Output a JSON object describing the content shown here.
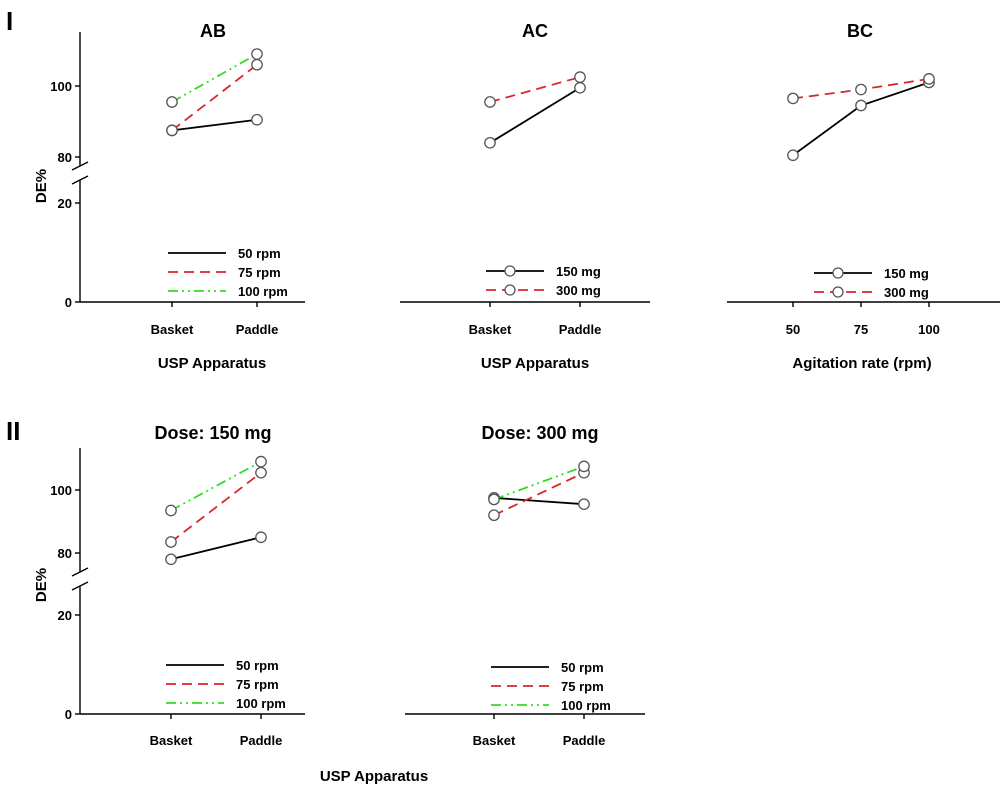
{
  "figure": {
    "panel_labels": [
      "I",
      "II"
    ],
    "ylabel": "DE%",
    "colors": {
      "50 rpm": "#000000",
      "75 rpm": "#d9262b",
      "100 rpm": "#33dd22",
      "150 mg": "#000000",
      "300 mg": "#d9262b"
    }
  },
  "chart_data": [
    {
      "type": "line",
      "title": "AB",
      "xlabel": "USP Apparatus",
      "ylabel": "DE%",
      "categories": [
        "Basket",
        "Paddle"
      ],
      "broken_y_axis": true,
      "y_ticks": [
        0,
        20,
        80,
        100
      ],
      "series": [
        {
          "name": "50 rpm",
          "values": [
            87.5,
            90.5
          ],
          "markers": true
        },
        {
          "name": "75 rpm",
          "values": [
            87.5,
            106
          ],
          "markers": true
        },
        {
          "name": "100 rpm",
          "values": [
            95.5,
            109
          ],
          "markers": true
        }
      ],
      "legend": "bottom-center"
    },
    {
      "type": "line",
      "title": "AC",
      "xlabel": "USP Apparatus",
      "categories": [
        "Basket",
        "Paddle"
      ],
      "series": [
        {
          "name": "150 mg",
          "values": [
            84,
            99.5
          ],
          "markers": true
        },
        {
          "name": "300 mg",
          "values": [
            95.5,
            102.5
          ],
          "markers": true
        }
      ],
      "legend": "bottom-center"
    },
    {
      "type": "line",
      "title": "BC",
      "xlabel": "Agitation rate (rpm)",
      "categories": [
        "50",
        "75",
        "100"
      ],
      "series": [
        {
          "name": "150 mg",
          "values": [
            80.5,
            94.5,
            101
          ],
          "markers": true
        },
        {
          "name": "300 mg",
          "values": [
            96.5,
            99,
            102
          ],
          "markers": true
        }
      ],
      "legend": "bottom-center"
    },
    {
      "type": "line",
      "title": "Dose: 150 mg",
      "xlabel": "USP Apparatus",
      "ylabel": "DE%",
      "categories": [
        "Basket",
        "Paddle"
      ],
      "broken_y_axis": true,
      "y_ticks": [
        0,
        20,
        80,
        100
      ],
      "series": [
        {
          "name": "50 rpm",
          "values": [
            78,
            85
          ],
          "markers": true
        },
        {
          "name": "75 rpm",
          "values": [
            83.5,
            105.5
          ],
          "markers": true
        },
        {
          "name": "100 rpm",
          "values": [
            93.5,
            109
          ],
          "markers": true
        }
      ],
      "legend": "bottom-center"
    },
    {
      "type": "line",
      "title": "Dose: 300 mg",
      "categories": [
        "Basket",
        "Paddle"
      ],
      "series": [
        {
          "name": "50 rpm",
          "values": [
            97.5,
            95.5
          ],
          "markers": true
        },
        {
          "name": "75 rpm",
          "values": [
            92,
            105.5
          ],
          "markers": true
        },
        {
          "name": "100 rpm",
          "values": [
            97,
            107.5
          ],
          "markers": true
        }
      ],
      "legend": "bottom-center"
    }
  ]
}
